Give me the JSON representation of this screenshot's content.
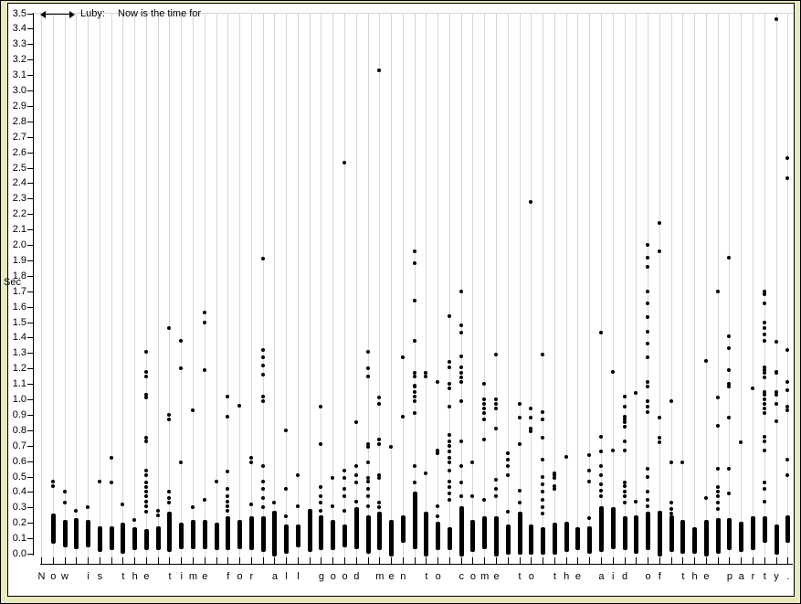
{
  "legend": {
    "series_label": "Luby:",
    "series_text": "Now is the time for",
    "icon": "range-arrow-icon"
  },
  "y_axis": {
    "label": "Sec",
    "min": 0.0,
    "max": 3.5,
    "step": 0.1,
    "tick_labels": [
      "0.0",
      "0.1",
      "0.2",
      "0.3",
      "0.4",
      "0.5",
      "0.6",
      "0.7",
      "0.8",
      "0.9",
      "1.0",
      "1.1",
      "1.2",
      "1.3",
      "1.4",
      "1.5",
      "1.6",
      "1.7",
      "1.8",
      "1.9",
      "2.0",
      "2.1",
      "2.2",
      "2.3",
      "2.4",
      "2.5",
      "2.6",
      "2.7",
      "2.8",
      "2.9",
      "3.0",
      "3.1",
      "3.2",
      "3.3",
      "3.4",
      "3.5"
    ]
  },
  "x_axis": {
    "sentence": "Now is the time for all good men to come to the aid of the party."
  },
  "colors": {
    "background": "#e8e8c1",
    "panel": "#ffffff",
    "grid": "#d7d7d7",
    "ink": "#000000"
  },
  "chart_data": {
    "type": "scatter",
    "title": "",
    "ylabel": "Sec",
    "ylim": [
      0,
      3.5
    ],
    "grid": "vertical",
    "legend_position": "top-left",
    "x_categories": [
      "N",
      "o",
      "w",
      " ",
      "i",
      "s",
      " ",
      "t",
      "h",
      "e",
      " ",
      "t",
      "i",
      "m",
      "e",
      " ",
      "f",
      "o",
      "r",
      " ",
      "a",
      "l",
      "l",
      " ",
      "g",
      "o",
      "o",
      "d",
      " ",
      "m",
      "e",
      "n",
      " ",
      "t",
      "o",
      " ",
      "c",
      "o",
      "m",
      "e",
      " ",
      "t",
      "o",
      " ",
      "t",
      "h",
      "e",
      " ",
      "a",
      "i",
      "d",
      " ",
      "o",
      "f",
      " ",
      "t",
      "h",
      "e",
      " ",
      "p",
      "a",
      "r",
      "t",
      "y",
      "."
    ],
    "columns": [
      {
        "char": "N",
        "bar_range": null,
        "outliers": []
      },
      {
        "char": "o",
        "bar_range": [
          0.08,
          0.26
        ],
        "outliers": [
          0.47,
          0.44
        ]
      },
      {
        "char": "w",
        "bar_range": [
          0.06,
          0.22
        ],
        "outliers": [
          0.4,
          0.33
        ]
      },
      {
        "char": " ",
        "bar_range": [
          0.05,
          0.23
        ],
        "outliers": [
          0.28
        ]
      },
      {
        "char": "i",
        "bar_range": [
          0.06,
          0.22
        ],
        "outliers": [
          0.3
        ]
      },
      {
        "char": "s",
        "bar_range": [
          0.03,
          0.18
        ],
        "outliers": [
          0.47
        ]
      },
      {
        "char": " ",
        "bar_range": [
          0.04,
          0.18
        ],
        "outliers": [
          0.62,
          0.46
        ]
      },
      {
        "char": "t",
        "bar_range": [
          0.02,
          0.2
        ],
        "outliers": [
          0.32
        ]
      },
      {
        "char": "h",
        "bar_range": [
          0.04,
          0.17
        ],
        "outliers": [
          0.22
        ]
      },
      {
        "char": "e",
        "bar_range": [
          0.04,
          0.16
        ],
        "outliers": [
          1.31,
          1.18,
          1.15,
          1.03,
          1.01,
          0.75,
          0.73,
          0.54,
          0.51,
          0.46,
          0.43,
          0.4,
          0.37,
          0.34,
          0.31,
          0.27
        ]
      },
      {
        "char": " ",
        "bar_range": [
          0.04,
          0.18
        ],
        "outliers": [
          0.28,
          0.25
        ]
      },
      {
        "char": "t",
        "bar_range": [
          0.03,
          0.27
        ],
        "outliers": [
          1.46,
          0.9,
          0.87,
          0.4,
          0.36,
          0.33
        ]
      },
      {
        "char": "i",
        "bar_range": [
          0.05,
          0.2
        ],
        "outliers": [
          1.38,
          1.2,
          0.59
        ]
      },
      {
        "char": "m",
        "bar_range": [
          0.05,
          0.22
        ],
        "outliers": [
          0.93,
          0.3
        ]
      },
      {
        "char": "e",
        "bar_range": [
          0.05,
          0.22
        ],
        "outliers": [
          1.56,
          1.5,
          1.19,
          0.35
        ]
      },
      {
        "char": " ",
        "bar_range": [
          0.04,
          0.2
        ],
        "outliers": [
          0.47
        ]
      },
      {
        "char": "f",
        "bar_range": [
          0.04,
          0.24
        ],
        "outliers": [
          1.02,
          0.89,
          0.53,
          0.42,
          0.37,
          0.34,
          0.31,
          0.28
        ]
      },
      {
        "char": "o",
        "bar_range": [
          0.05,
          0.22
        ],
        "outliers": [
          0.96
        ]
      },
      {
        "char": "r",
        "bar_range": [
          0.04,
          0.24
        ],
        "outliers": [
          0.62,
          0.59,
          0.32
        ]
      },
      {
        "char": " ",
        "bar_range": [
          0.03,
          0.24
        ],
        "outliers": [
          1.91,
          1.32,
          1.27,
          1.22,
          1.16,
          1.02,
          0.99,
          0.57,
          0.47,
          0.42,
          0.36,
          0.3
        ]
      },
      {
        "char": "a",
        "bar_range": [
          0.0,
          0.28
        ],
        "outliers": [
          0.33
        ]
      },
      {
        "char": "l",
        "bar_range": [
          0.02,
          0.19
        ],
        "outliers": [
          0.8,
          0.42,
          0.24
        ]
      },
      {
        "char": "l",
        "bar_range": [
          0.06,
          0.19
        ],
        "outliers": [
          0.51,
          0.31
        ]
      },
      {
        "char": " ",
        "bar_range": [
          0.03,
          0.29
        ],
        "outliers": []
      },
      {
        "char": "g",
        "bar_range": [
          0.04,
          0.25
        ],
        "outliers": [
          0.95,
          0.71,
          0.43,
          0.37,
          0.33,
          0.28
        ]
      },
      {
        "char": "o",
        "bar_range": [
          0.04,
          0.22
        ],
        "outliers": [
          0.49,
          0.31
        ]
      },
      {
        "char": "o",
        "bar_range": [
          0.06,
          0.19
        ],
        "outliers": [
          2.53,
          0.54,
          0.49,
          0.42,
          0.37,
          0.28
        ]
      },
      {
        "char": "d",
        "bar_range": [
          0.05,
          0.3
        ],
        "outliers": [
          0.85,
          0.57,
          0.51,
          0.46,
          0.34
        ]
      },
      {
        "char": " ",
        "bar_range": [
          0.02,
          0.25
        ],
        "outliers": [
          1.31,
          1.2,
          1.15,
          0.71,
          0.69,
          0.59,
          0.49,
          0.47,
          0.42,
          0.37,
          0.31
        ]
      },
      {
        "char": "m",
        "bar_range": [
          0.04,
          0.27
        ],
        "outliers": [
          3.13,
          1.01,
          0.97,
          0.74,
          0.71,
          0.51,
          0.49,
          0.33,
          0.3
        ]
      },
      {
        "char": "e",
        "bar_range": [
          0.0,
          0.22
        ],
        "outliers": [
          0.69
        ]
      },
      {
        "char": "n",
        "bar_range": [
          0.09,
          0.25
        ],
        "outliers": [
          1.27,
          0.89
        ]
      },
      {
        "char": " ",
        "bar_range": [
          0.05,
          0.4
        ],
        "outliers": [
          1.96,
          1.88,
          1.64,
          1.38,
          1.17,
          1.15,
          1.09,
          1.08,
          1.05,
          1.02,
          0.99,
          0.91,
          0.57,
          0.46
        ]
      },
      {
        "char": "t",
        "bar_range": [
          0.0,
          0.27
        ],
        "outliers": [
          1.17,
          1.15,
          0.52
        ]
      },
      {
        "char": "o",
        "bar_range": [
          0.04,
          0.21
        ],
        "outliers": [
          1.11,
          0.67,
          0.65,
          0.31,
          0.24
        ]
      },
      {
        "char": " ",
        "bar_range": [
          0.04,
          0.17
        ],
        "outliers": [
          1.54,
          1.24,
          1.21,
          1.1,
          1.07,
          0.95,
          0.77,
          0.73,
          0.7,
          0.66,
          0.62,
          0.59,
          0.54,
          0.47,
          0.43,
          0.39,
          0.35
        ]
      },
      {
        "char": "c",
        "bar_range": [
          0.0,
          0.31
        ],
        "outliers": [
          1.7,
          1.48,
          1.43,
          1.28,
          1.21,
          1.17,
          1.14,
          1.11,
          0.99,
          0.73,
          0.57,
          0.46,
          0.37
        ]
      },
      {
        "char": "o",
        "bar_range": [
          0.03,
          0.22
        ],
        "outliers": [
          0.59,
          0.37
        ]
      },
      {
        "char": "m",
        "bar_range": [
          0.05,
          0.24
        ],
        "outliers": [
          1.1,
          1.0,
          0.97,
          0.94,
          0.91,
          0.87,
          0.74,
          0.35
        ]
      },
      {
        "char": "e",
        "bar_range": [
          0.0,
          0.24
        ],
        "outliers": [
          1.29,
          1.0,
          0.97,
          0.94,
          0.81,
          0.48,
          0.42,
          0.37
        ]
      },
      {
        "char": " ",
        "bar_range": [
          0.01,
          0.19
        ],
        "outliers": [
          0.65,
          0.61,
          0.57,
          0.51,
          0.27
        ]
      },
      {
        "char": "t",
        "bar_range": [
          0.01,
          0.27
        ],
        "outliers": [
          0.97,
          0.88,
          0.71,
          0.41,
          0.33
        ]
      },
      {
        "char": "o",
        "bar_range": [
          0.01,
          0.19
        ],
        "outliers": [
          2.28,
          0.94,
          0.88,
          0.81,
          0.79
        ]
      },
      {
        "char": " ",
        "bar_range": [
          0.01,
          0.17
        ],
        "outliers": [
          1.29,
          0.92,
          0.87,
          0.75,
          0.61,
          0.5,
          0.45,
          0.4,
          0.35,
          0.3,
          0.26
        ]
      },
      {
        "char": "t",
        "bar_range": [
          0.01,
          0.2
        ],
        "outliers": [
          0.52,
          0.51,
          0.49,
          0.44,
          0.42
        ]
      },
      {
        "char": "h",
        "bar_range": [
          0.03,
          0.21
        ],
        "outliers": [
          0.63
        ]
      },
      {
        "char": "e",
        "bar_range": [
          0.04,
          0.17
        ],
        "outliers": []
      },
      {
        "char": " ",
        "bar_range": [
          0.02,
          0.18
        ],
        "outliers": [
          0.64,
          0.54,
          0.47,
          0.23
        ]
      },
      {
        "char": "a",
        "bar_range": [
          0.03,
          0.31
        ],
        "outliers": [
          1.43,
          0.76,
          0.66,
          0.57,
          0.51,
          0.45,
          0.41,
          0.37
        ]
      },
      {
        "char": "i",
        "bar_range": [
          0.05,
          0.3
        ],
        "outliers": [
          1.18,
          0.67
        ]
      },
      {
        "char": "d",
        "bar_range": [
          0.04,
          0.24
        ],
        "outliers": [
          1.02,
          0.95,
          0.89,
          0.87,
          0.85,
          0.82,
          0.73,
          0.67,
          0.46,
          0.44,
          0.4,
          0.37,
          0.33
        ]
      },
      {
        "char": " ",
        "bar_range": [
          0.02,
          0.25
        ],
        "outliers": [
          1.04,
          0.34
        ]
      },
      {
        "char": "o",
        "bar_range": [
          0.04,
          0.27
        ],
        "outliers": [
          2.0,
          1.92,
          1.86,
          1.7,
          1.62,
          1.53,
          1.44,
          1.36,
          1.27,
          1.11,
          1.08,
          0.99,
          0.95,
          0.92,
          0.55,
          0.5,
          0.4,
          0.35,
          0.31
        ]
      },
      {
        "char": "f",
        "bar_range": [
          0.0,
          0.28
        ],
        "outliers": [
          2.14,
          1.96,
          0.88,
          0.75,
          0.72
        ]
      },
      {
        "char": " ",
        "bar_range": [
          0.03,
          0.25
        ],
        "outliers": [
          0.99,
          0.59,
          0.33,
          0.29,
          0.26
        ]
      },
      {
        "char": "t",
        "bar_range": [
          0.02,
          0.22
        ],
        "outliers": [
          0.59
        ]
      },
      {
        "char": "h",
        "bar_range": [
          0.02,
          0.17
        ],
        "outliers": []
      },
      {
        "char": "e",
        "bar_range": [
          0.0,
          0.22
        ],
        "outliers": [
          1.25,
          0.36
        ]
      },
      {
        "char": " ",
        "bar_range": [
          0.02,
          0.23
        ],
        "outliers": [
          1.7,
          1.01,
          0.83,
          0.55,
          0.43,
          0.4,
          0.37,
          0.33,
          0.29
        ]
      },
      {
        "char": "p",
        "bar_range": [
          0.04,
          0.23
        ],
        "outliers": [
          1.92,
          1.41,
          1.33,
          1.19,
          1.1,
          1.08,
          0.88,
          0.55,
          0.39
        ]
      },
      {
        "char": "a",
        "bar_range": [
          0.03,
          0.21
        ],
        "outliers": [
          0.72
        ]
      },
      {
        "char": "r",
        "bar_range": [
          0.04,
          0.24
        ],
        "outliers": [
          1.07
        ]
      },
      {
        "char": "t",
        "bar_range": [
          0.09,
          0.24
        ],
        "outliers": [
          1.7,
          1.68,
          1.62,
          1.5,
          1.46,
          1.42,
          1.38,
          1.21,
          1.19,
          1.17,
          1.14,
          1.05,
          1.03,
          1.0,
          0.97,
          0.94,
          0.91,
          0.76,
          0.73,
          0.67,
          0.46,
          0.42,
          0.34
        ]
      },
      {
        "char": "y",
        "bar_range": [
          0.01,
          0.19
        ],
        "outliers": [
          3.46,
          1.37,
          1.18,
          1.17,
          1.05,
          1.03,
          0.97,
          0.86
        ]
      },
      {
        "char": ".",
        "bar_range": [
          0.09,
          0.25
        ],
        "outliers": [
          2.56,
          2.43,
          1.32,
          1.11,
          1.06,
          0.95,
          0.93,
          0.61,
          0.51
        ]
      }
    ]
  }
}
